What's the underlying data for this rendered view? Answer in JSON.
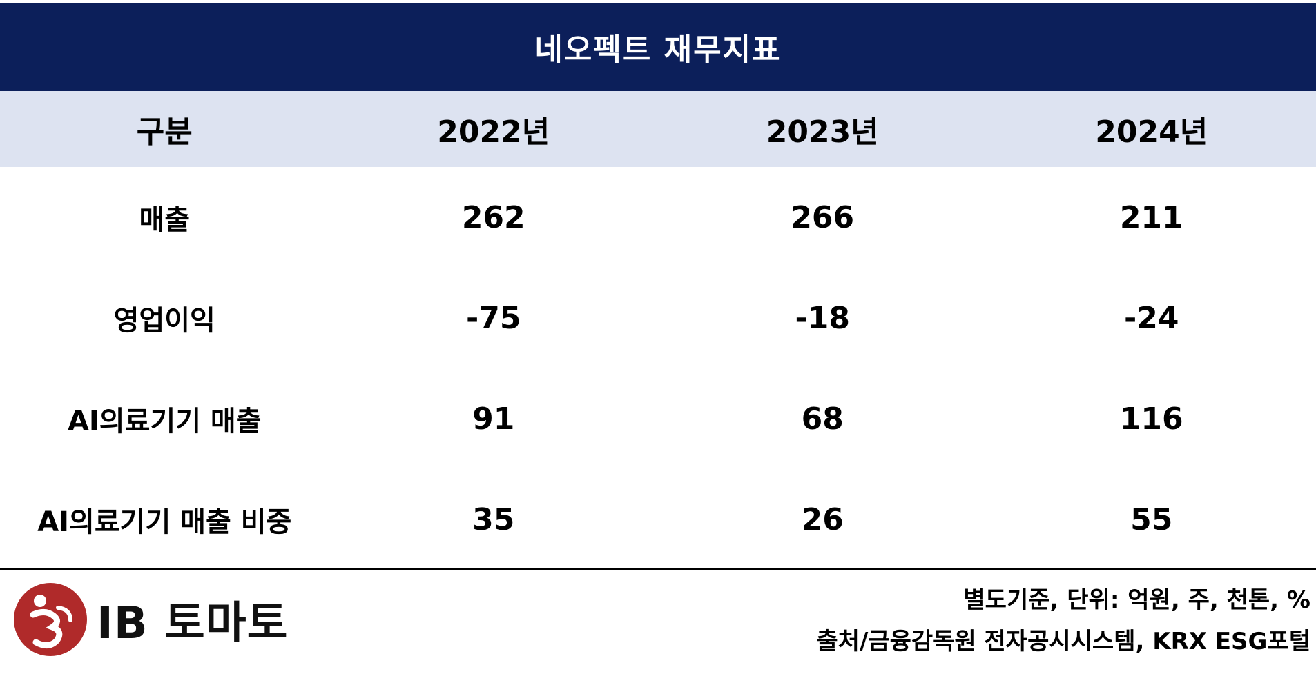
{
  "title": "네오펙트 재무지표",
  "table": {
    "headers": [
      "구분",
      "2022년",
      "2023년",
      "2024년"
    ],
    "rows": [
      {
        "label": "매출",
        "values": [
          "262",
          "266",
          "211"
        ]
      },
      {
        "label": "영업이익",
        "values": [
          "-75",
          "-18",
          "-24"
        ]
      },
      {
        "label": "AI의료기기 매출",
        "values": [
          "91",
          "68",
          "116"
        ]
      },
      {
        "label": "AI의료기기 매출 비중",
        "values": [
          "35",
          "26",
          "55"
        ]
      }
    ]
  },
  "footer": {
    "logo_text": "IB 토마토",
    "note_unit": "별도기준, 단위: 억원, 주, 천톤, %",
    "note_source": "출처/금융감독원 전자공시시스템, KRX ESG포털"
  },
  "colors": {
    "title_bg": "#0c1f5a",
    "header_bg": "#dde3f1",
    "logo_red": "#b02a2a"
  }
}
